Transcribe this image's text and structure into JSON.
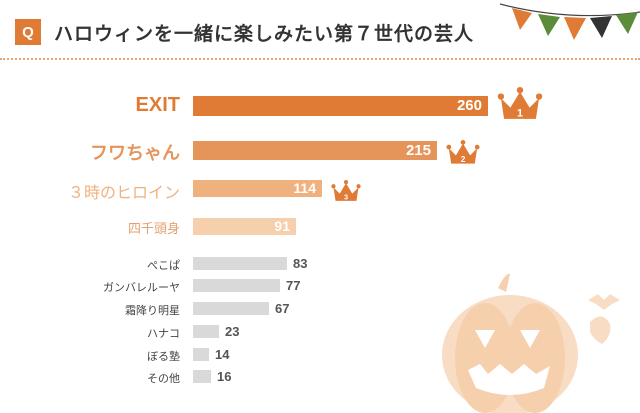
{
  "header": {
    "badge": "Q",
    "title": "ハロウィンを一緒に楽しみたい第７世代の芸人"
  },
  "colors": {
    "accent": "#e07b35",
    "bar_rank1": "#e07b35",
    "bar_rank2": "#e5945a",
    "bar_rank3": "#efb27e",
    "bar_rank4": "#f6cfad",
    "bar_other": "#d9d9d9"
  },
  "icons": [
    "crown-icon",
    "pumpkin-icon",
    "bunting-icon",
    "ghost-icon",
    "bat-icon"
  ],
  "chart_data": {
    "type": "bar",
    "orientation": "horizontal",
    "title": "ハロウィンを一緒に楽しみたい第７世代の芸人",
    "categories": [
      "EXIT",
      "フワちゃん",
      "３時のヒロイン",
      "四千頭身",
      "ぺこぱ",
      "ガンバレルーヤ",
      "霜降り明星",
      "ハナコ",
      "ぼる塾",
      "その他"
    ],
    "values": [
      260,
      215,
      114,
      91,
      83,
      77,
      67,
      23,
      14,
      16
    ],
    "ranks": [
      "1",
      "2",
      "3"
    ],
    "xlim": [
      0,
      260
    ],
    "grid": false,
    "legend": "none"
  }
}
